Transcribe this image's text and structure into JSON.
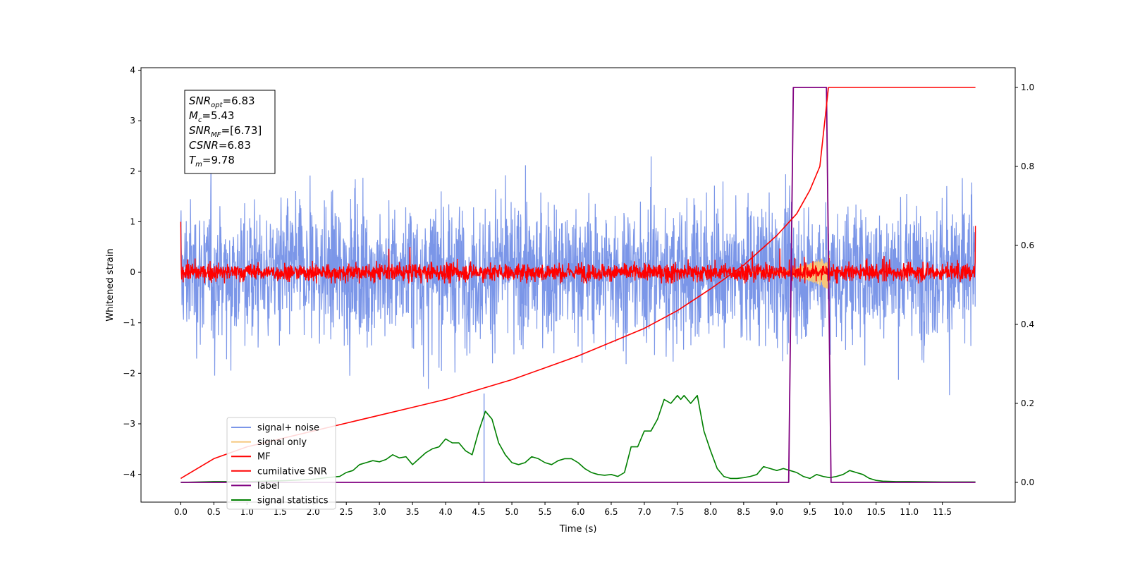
{
  "chart_data": {
    "type": "line",
    "xlabel": "Time (s)",
    "ylabel": "Whitened strain",
    "xlim": [
      -0.6,
      12.6
    ],
    "ylim_left": [
      -4.55,
      4.05
    ],
    "ylim_right": [
      -0.05,
      1.05
    ],
    "x_ticks": [
      "0.0",
      "0.5",
      "1.0",
      "1.5",
      "2.0",
      "2.5",
      "3.0",
      "3.5",
      "4.0",
      "4.5",
      "5.0",
      "5.5",
      "6.0",
      "6.5",
      "7.0",
      "7.5",
      "8.0",
      "8.5",
      "9.0",
      "9.5",
      "10.0",
      "10.5",
      "11.0",
      "11.5"
    ],
    "y_ticks_left": [
      "4",
      "3",
      "2",
      "1",
      "0",
      "−1",
      "−2",
      "−3",
      "−4"
    ],
    "y_ticks_right": [
      "0.0",
      "0.2",
      "0.4",
      "0.6",
      "0.8",
      "1.0"
    ],
    "legend_position": "lower-left",
    "annotation": {
      "lines": [
        {
          "base": "SNR",
          "sub": "opt",
          "value": "=6.83"
        },
        {
          "base": "M",
          "sub": "c",
          "value": "=5.43"
        },
        {
          "base": "SNR",
          "sub": "MF",
          "value": "=[6.73]"
        },
        {
          "base": "CSNR",
          "sub": "",
          "value": "=6.83"
        },
        {
          "base": "T",
          "sub": "m",
          "value": "=9.78"
        }
      ]
    },
    "series": [
      {
        "name": "signal+ noise",
        "axis": "left",
        "color": "#7b96e8",
        "description": "whitened noise with signal, roughly N(0, 1) band spanning -2.5..2.5 with spikes to ~3.6",
        "x_range": [
          0,
          12
        ],
        "amplitude": 1.0
      },
      {
        "name": "signal only",
        "axis": "left",
        "color": "#f5c67a",
        "description": "chirp signal peaking near T_m",
        "x_range": [
          8.6,
          9.8
        ],
        "peak_amplitude": 0.35
      },
      {
        "name": "MF",
        "axis": "left",
        "color": "#ff0000",
        "description": "matched filter output, band around 0 with amplitude ~0.3, spikes to 1.0 at start and 0.9 at end",
        "x_range": [
          0,
          12
        ],
        "amplitude": 0.3
      },
      {
        "name": "cumilative SNR",
        "axis": "right",
        "color": "#ff0000",
        "x": [
          0.0,
          0.05,
          0.5,
          1.0,
          1.5,
          2.0,
          2.5,
          3.0,
          3.5,
          4.0,
          4.5,
          5.0,
          5.5,
          6.0,
          6.5,
          7.0,
          7.5,
          8.0,
          8.5,
          9.0,
          9.3,
          9.5,
          9.65,
          9.78,
          10.0,
          11.0,
          12.0
        ],
        "y": [
          0.01,
          0.015,
          0.06,
          0.09,
          0.11,
          0.13,
          0.15,
          0.17,
          0.19,
          0.21,
          0.235,
          0.26,
          0.29,
          0.32,
          0.355,
          0.39,
          0.435,
          0.49,
          0.55,
          0.625,
          0.68,
          0.74,
          0.8,
          1.0,
          1.0,
          1.0,
          1.0
        ]
      },
      {
        "name": "label",
        "axis": "right",
        "color": "#800080",
        "x": [
          0.0,
          9.18,
          9.25,
          9.75,
          9.82,
          12.0
        ],
        "y": [
          0.0,
          0.0,
          1.0,
          1.0,
          0.0,
          0.0
        ]
      },
      {
        "name": "signal statistics",
        "axis": "right",
        "color": "#008000",
        "x": [
          0.0,
          0.5,
          1.0,
          1.5,
          1.8,
          2.0,
          2.2,
          2.4,
          2.5,
          2.6,
          2.7,
          2.8,
          2.9,
          3.0,
          3.1,
          3.2,
          3.3,
          3.4,
          3.5,
          3.6,
          3.7,
          3.8,
          3.9,
          4.0,
          4.1,
          4.2,
          4.3,
          4.4,
          4.5,
          4.6,
          4.7,
          4.8,
          4.9,
          5.0,
          5.1,
          5.2,
          5.3,
          5.4,
          5.5,
          5.6,
          5.7,
          5.8,
          5.9,
          6.0,
          6.1,
          6.2,
          6.3,
          6.4,
          6.5,
          6.6,
          6.7,
          6.8,
          6.9,
          7.0,
          7.1,
          7.2,
          7.3,
          7.4,
          7.5,
          7.55,
          7.6,
          7.7,
          7.8,
          7.9,
          8.0,
          8.1,
          8.2,
          8.3,
          8.4,
          8.5,
          8.6,
          8.7,
          8.8,
          8.9,
          9.0,
          9.1,
          9.2,
          9.3,
          9.4,
          9.5,
          9.6,
          9.7,
          9.8,
          9.9,
          10.0,
          10.1,
          10.2,
          10.3,
          10.4,
          10.5,
          10.6,
          10.8,
          11.0,
          11.5,
          12.0
        ],
        "y": [
          0.0,
          0.002,
          0.002,
          0.004,
          0.006,
          0.008,
          0.012,
          0.015,
          0.025,
          0.03,
          0.045,
          0.05,
          0.055,
          0.052,
          0.058,
          0.07,
          0.062,
          0.065,
          0.045,
          0.06,
          0.075,
          0.085,
          0.09,
          0.11,
          0.1,
          0.1,
          0.08,
          0.07,
          0.13,
          0.18,
          0.16,
          0.1,
          0.07,
          0.05,
          0.045,
          0.05,
          0.065,
          0.06,
          0.05,
          0.045,
          0.055,
          0.06,
          0.06,
          0.05,
          0.035,
          0.025,
          0.02,
          0.018,
          0.02,
          0.015,
          0.025,
          0.09,
          0.09,
          0.13,
          0.13,
          0.16,
          0.21,
          0.2,
          0.22,
          0.21,
          0.22,
          0.2,
          0.22,
          0.13,
          0.08,
          0.035,
          0.015,
          0.01,
          0.01,
          0.012,
          0.015,
          0.02,
          0.04,
          0.035,
          0.03,
          0.035,
          0.03,
          0.025,
          0.015,
          0.01,
          0.02,
          0.015,
          0.012,
          0.015,
          0.02,
          0.03,
          0.025,
          0.02,
          0.01,
          0.005,
          0.003,
          0.002,
          0.002,
          0.001,
          0.001
        ]
      }
    ]
  }
}
